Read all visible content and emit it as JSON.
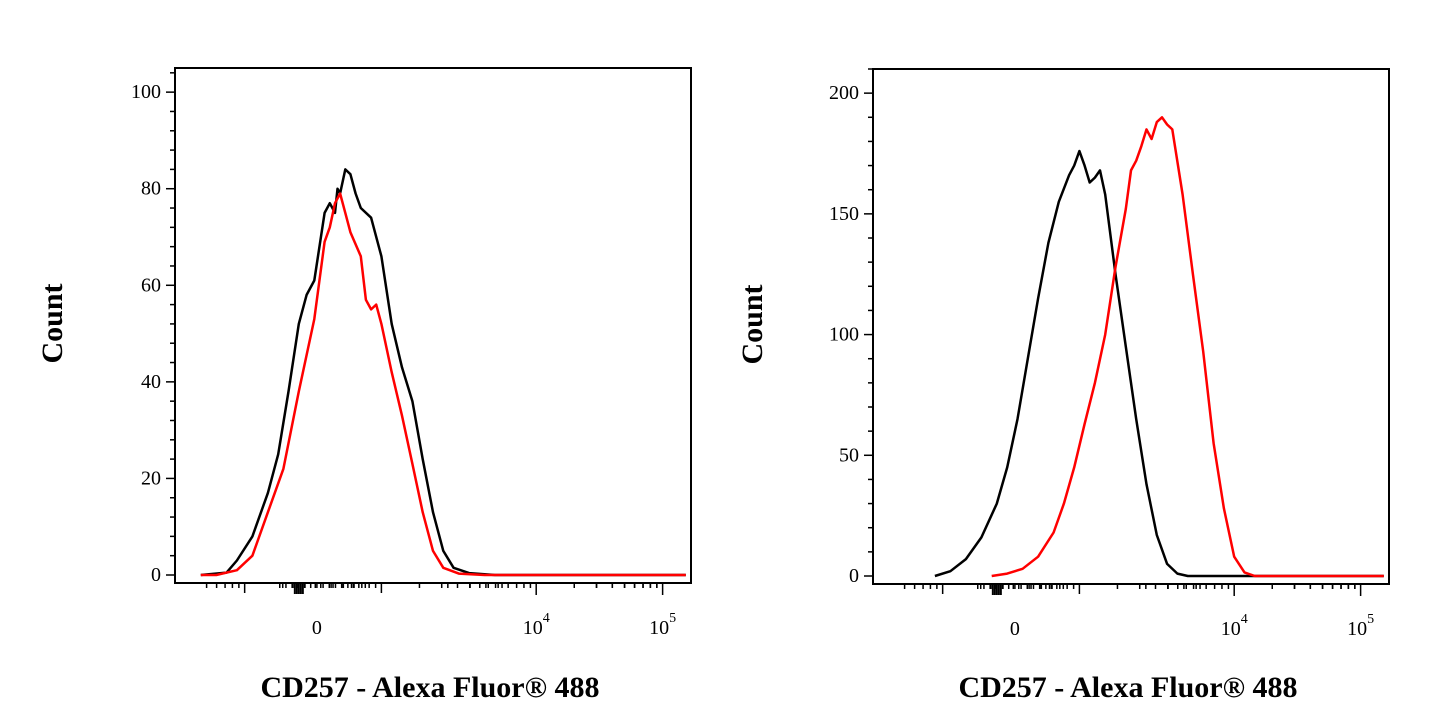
{
  "chart_data": [
    {
      "type": "line",
      "xlabel": "CD257 - Alexa Fluor® 488",
      "ylabel": "Count",
      "ylim": [
        0,
        100
      ],
      "yticks": [
        {
          "value": 0,
          "label": "0"
        },
        {
          "value": 20,
          "label": "20"
        },
        {
          "value": 40,
          "label": "40"
        },
        {
          "value": 60,
          "label": "60"
        },
        {
          "value": 80,
          "label": "80"
        },
        {
          "value": 100,
          "label": "100"
        }
      ],
      "xscale": "biexponential",
      "xticks": [
        {
          "value": 0,
          "base": "0",
          "exp": ""
        },
        {
          "value": 10000,
          "base": "10",
          "exp": "4"
        },
        {
          "value": 100000,
          "base": "10",
          "exp": "5"
        }
      ],
      "series": [
        {
          "color": "#000000",
          "points": [
            [
              0.05,
              0
            ],
            [
              0.1,
              0.5
            ],
            [
              0.12,
              3
            ],
            [
              0.15,
              8
            ],
            [
              0.18,
              17
            ],
            [
              0.2,
              25
            ],
            [
              0.22,
              38
            ],
            [
              0.24,
              52
            ],
            [
              0.255,
              58
            ],
            [
              0.27,
              61
            ],
            [
              0.29,
              75
            ],
            [
              0.3,
              77
            ],
            [
              0.31,
              75
            ],
            [
              0.315,
              80
            ],
            [
              0.32,
              79
            ],
            [
              0.33,
              84
            ],
            [
              0.34,
              83
            ],
            [
              0.35,
              79
            ],
            [
              0.36,
              76
            ],
            [
              0.38,
              74
            ],
            [
              0.4,
              66
            ],
            [
              0.42,
              52
            ],
            [
              0.44,
              43
            ],
            [
              0.46,
              36
            ],
            [
              0.48,
              24
            ],
            [
              0.5,
              13
            ],
            [
              0.52,
              5
            ],
            [
              0.54,
              1.5
            ],
            [
              0.57,
              0.4
            ],
            [
              0.62,
              0
            ],
            [
              0.99,
              0
            ]
          ]
        },
        {
          "color": "#ff0000",
          "points": [
            [
              0.05,
              0
            ],
            [
              0.08,
              0
            ],
            [
              0.12,
              1
            ],
            [
              0.15,
              4
            ],
            [
              0.18,
              13
            ],
            [
              0.21,
              22
            ],
            [
              0.24,
              38
            ],
            [
              0.27,
              53
            ],
            [
              0.29,
              69
            ],
            [
              0.3,
              72
            ],
            [
              0.31,
              77
            ],
            [
              0.32,
              79
            ],
            [
              0.33,
              75
            ],
            [
              0.34,
              71
            ],
            [
              0.36,
              66
            ],
            [
              0.37,
              57
            ],
            [
              0.38,
              55
            ],
            [
              0.39,
              56
            ],
            [
              0.4,
              52
            ],
            [
              0.42,
              42
            ],
            [
              0.44,
              33
            ],
            [
              0.46,
              23
            ],
            [
              0.48,
              13
            ],
            [
              0.5,
              5
            ],
            [
              0.52,
              1.5
            ],
            [
              0.55,
              0.3
            ],
            [
              0.6,
              0
            ],
            [
              0.99,
              0
            ]
          ]
        }
      ]
    },
    {
      "type": "line",
      "xlabel": "CD257 - Alexa Fluor® 488",
      "ylabel": "Count",
      "ylim": [
        0,
        200
      ],
      "yticks": [
        {
          "value": 0,
          "label": "0"
        },
        {
          "value": 50,
          "label": "50"
        },
        {
          "value": 100,
          "label": "100"
        },
        {
          "value": 150,
          "label": "150"
        },
        {
          "value": 200,
          "label": "200"
        }
      ],
      "xscale": "biexponential",
      "xticks": [
        {
          "value": 0,
          "base": "0",
          "exp": ""
        },
        {
          "value": 10000,
          "base": "10",
          "exp": "4"
        },
        {
          "value": 100000,
          "base": "10",
          "exp": "5"
        }
      ],
      "series": [
        {
          "color": "#000000",
          "points": [
            [
              0.12,
              0
            ],
            [
              0.15,
              2
            ],
            [
              0.18,
              7
            ],
            [
              0.21,
              16
            ],
            [
              0.24,
              30
            ],
            [
              0.26,
              45
            ],
            [
              0.28,
              65
            ],
            [
              0.3,
              90
            ],
            [
              0.32,
              115
            ],
            [
              0.34,
              138
            ],
            [
              0.36,
              155
            ],
            [
              0.38,
              166
            ],
            [
              0.39,
              170
            ],
            [
              0.4,
              176
            ],
            [
              0.41,
              170
            ],
            [
              0.42,
              163
            ],
            [
              0.43,
              165
            ],
            [
              0.44,
              168
            ],
            [
              0.45,
              158
            ],
            [
              0.47,
              125
            ],
            [
              0.49,
              95
            ],
            [
              0.51,
              65
            ],
            [
              0.53,
              38
            ],
            [
              0.55,
              17
            ],
            [
              0.57,
              5
            ],
            [
              0.59,
              1
            ],
            [
              0.61,
              0
            ],
            [
              0.99,
              0
            ]
          ]
        },
        {
          "color": "#ff0000",
          "points": [
            [
              0.23,
              0
            ],
            [
              0.26,
              1
            ],
            [
              0.29,
              3
            ],
            [
              0.32,
              8
            ],
            [
              0.35,
              18
            ],
            [
              0.37,
              30
            ],
            [
              0.39,
              45
            ],
            [
              0.41,
              63
            ],
            [
              0.43,
              80
            ],
            [
              0.45,
              100
            ],
            [
              0.47,
              128
            ],
            [
              0.49,
              152
            ],
            [
              0.5,
              168
            ],
            [
              0.51,
              172
            ],
            [
              0.52,
              178
            ],
            [
              0.53,
              185
            ],
            [
              0.54,
              181
            ],
            [
              0.55,
              188
            ],
            [
              0.56,
              190
            ],
            [
              0.57,
              187
            ],
            [
              0.58,
              185
            ],
            [
              0.6,
              158
            ],
            [
              0.62,
              125
            ],
            [
              0.64,
              93
            ],
            [
              0.66,
              55
            ],
            [
              0.68,
              28
            ],
            [
              0.7,
              8
            ],
            [
              0.72,
              1.5
            ],
            [
              0.74,
              0
            ],
            [
              0.99,
              0
            ]
          ]
        }
      ]
    }
  ]
}
